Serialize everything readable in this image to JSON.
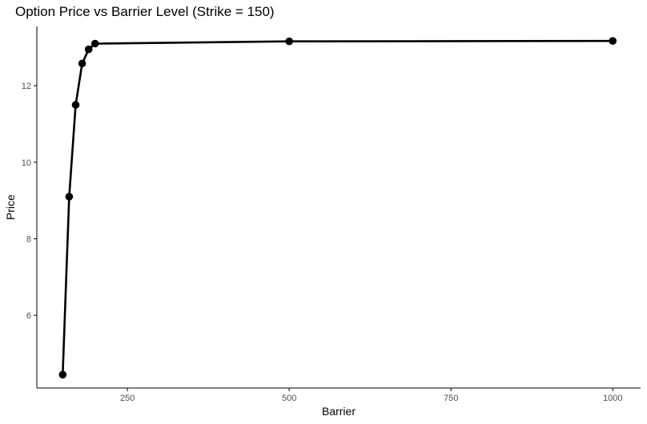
{
  "chart_data": {
    "type": "line",
    "title": "Option Price vs Barrier Level (Strike = 150)",
    "xlabel": "Barrier",
    "ylabel": "Price",
    "x_ticks": [
      250,
      500,
      750,
      1000
    ],
    "y_ticks": [
      6,
      8,
      10,
      12
    ],
    "xlim": [
      110,
      1043
    ],
    "ylim": [
      4.1,
      13.55
    ],
    "grid": false,
    "legend": "none",
    "series": [
      {
        "x": [
          150,
          160,
          170,
          180,
          190,
          200,
          500,
          1000
        ],
        "y": [
          4.45,
          9.1,
          11.5,
          12.58,
          12.95,
          13.1,
          13.16,
          13.17
        ]
      }
    ]
  },
  "colors": {
    "background": "#ffffff",
    "line": "#000000",
    "points": "#000000",
    "axis": "#000000",
    "tick_text": "#4d4d4d"
  }
}
